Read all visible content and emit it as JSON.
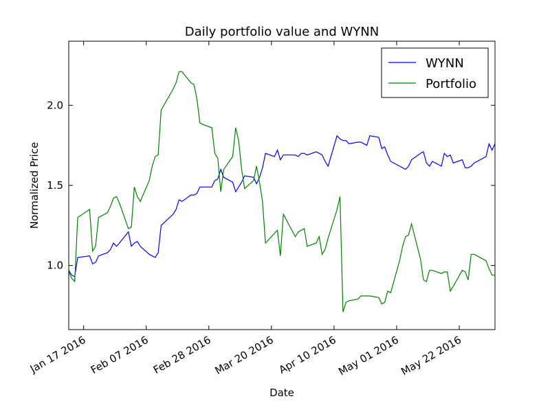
{
  "chart_data": {
    "type": "line",
    "title": "Daily portfolio value and WYNN",
    "xlabel": "Date",
    "ylabel": "Normalized Price",
    "x": [
      "2016-01-12",
      "2016-01-13",
      "2016-01-14",
      "2016-01-15",
      "2016-01-19",
      "2016-01-20",
      "2016-01-21",
      "2016-01-22",
      "2016-01-25",
      "2016-01-26",
      "2016-01-27",
      "2016-01-28",
      "2016-01-29",
      "2016-02-01",
      "2016-02-02",
      "2016-02-03",
      "2016-02-04",
      "2016-02-05",
      "2016-02-08",
      "2016-02-09",
      "2016-02-10",
      "2016-02-11",
      "2016-02-12",
      "2016-02-16",
      "2016-02-17",
      "2016-02-18",
      "2016-02-19",
      "2016-02-22",
      "2016-02-23",
      "2016-02-24",
      "2016-02-25",
      "2016-02-26",
      "2016-02-29",
      "2016-03-01",
      "2016-03-02",
      "2016-03-03",
      "2016-03-04",
      "2016-03-07",
      "2016-03-08",
      "2016-03-09",
      "2016-03-10",
      "2016-03-11",
      "2016-03-14",
      "2016-03-15",
      "2016-03-16",
      "2016-03-17",
      "2016-03-18",
      "2016-03-21",
      "2016-03-22",
      "2016-03-23",
      "2016-03-24",
      "2016-03-28",
      "2016-03-29",
      "2016-03-30",
      "2016-03-31",
      "2016-04-01",
      "2016-04-04",
      "2016-04-05",
      "2016-04-06",
      "2016-04-07",
      "2016-04-08",
      "2016-04-11",
      "2016-04-12",
      "2016-04-13",
      "2016-04-14",
      "2016-04-15",
      "2016-04-18",
      "2016-04-19",
      "2016-04-20",
      "2016-04-21",
      "2016-04-22",
      "2016-04-25",
      "2016-04-26",
      "2016-04-27",
      "2016-04-28",
      "2016-04-29",
      "2016-05-02",
      "2016-05-03",
      "2016-05-04",
      "2016-05-05",
      "2016-05-06",
      "2016-05-09",
      "2016-05-10",
      "2016-05-11",
      "2016-05-12",
      "2016-05-13",
      "2016-05-16",
      "2016-05-17",
      "2016-05-18",
      "2016-05-19",
      "2016-05-20",
      "2016-05-23",
      "2016-05-24",
      "2016-05-25",
      "2016-05-26",
      "2016-05-27",
      "2016-05-31",
      "2016-06-01",
      "2016-06-02",
      "2016-06-03"
    ],
    "series": [
      {
        "name": "WYNN",
        "color": "#0000ff",
        "values": [
          0.97,
          0.94,
          0.93,
          1.05,
          1.06,
          1.01,
          1.02,
          1.06,
          1.08,
          1.1,
          1.14,
          1.12,
          1.14,
          1.21,
          1.12,
          1.14,
          1.15,
          1.12,
          1.07,
          1.06,
          1.05,
          1.08,
          1.25,
          1.32,
          1.35,
          1.41,
          1.4,
          1.44,
          1.44,
          1.45,
          1.49,
          1.49,
          1.49,
          1.53,
          1.54,
          1.6,
          1.55,
          1.52,
          1.46,
          1.49,
          1.52,
          1.56,
          1.55,
          1.51,
          1.55,
          1.61,
          1.7,
          1.68,
          1.72,
          1.66,
          1.69,
          1.69,
          1.68,
          1.7,
          1.7,
          1.69,
          1.71,
          1.7,
          1.69,
          1.65,
          1.62,
          1.81,
          1.79,
          1.78,
          1.78,
          1.76,
          1.77,
          1.77,
          1.76,
          1.75,
          1.81,
          1.8,
          1.73,
          1.74,
          1.69,
          1.65,
          1.62,
          1.61,
          1.6,
          1.62,
          1.66,
          1.7,
          1.71,
          1.64,
          1.62,
          1.65,
          1.62,
          1.7,
          1.68,
          1.69,
          1.64,
          1.66,
          1.61,
          1.61,
          1.62,
          1.64,
          1.68,
          1.76,
          1.72,
          1.76
        ]
      },
      {
        "name": "Portfolio",
        "color": "#008000",
        "values": [
          0.96,
          0.92,
          0.9,
          1.3,
          1.35,
          1.09,
          1.12,
          1.3,
          1.33,
          1.37,
          1.42,
          1.43,
          1.39,
          1.23,
          1.24,
          1.49,
          1.43,
          1.4,
          1.53,
          1.62,
          1.68,
          1.69,
          1.97,
          2.1,
          2.14,
          2.21,
          2.21,
          2.14,
          2.13,
          2.04,
          1.89,
          1.88,
          1.86,
          1.7,
          1.67,
          1.46,
          1.6,
          1.68,
          1.86,
          1.78,
          1.6,
          1.48,
          1.53,
          1.62,
          1.52,
          1.4,
          1.14,
          1.2,
          1.22,
          1.06,
          1.32,
          1.18,
          1.21,
          1.22,
          1.23,
          1.12,
          1.14,
          1.18,
          1.07,
          1.1,
          1.17,
          1.35,
          1.43,
          0.71,
          0.77,
          0.78,
          0.79,
          0.81,
          0.81,
          0.81,
          0.81,
          0.8,
          0.76,
          0.77,
          0.84,
          0.83,
          1.03,
          1.12,
          1.18,
          1.19,
          1.26,
          1.04,
          0.91,
          0.9,
          0.97,
          0.97,
          0.95,
          0.96,
          0.96,
          0.84,
          0.87,
          0.97,
          0.96,
          0.91,
          1.07,
          1.07,
          1.03,
          0.98,
          0.94,
          0.94
        ]
      }
    ],
    "xlim": [
      "2016-01-12",
      "2016-06-03"
    ],
    "xticks": [
      {
        "value": "2016-01-17",
        "label": "Jan 17 2016"
      },
      {
        "value": "2016-02-07",
        "label": "Feb 07 2016"
      },
      {
        "value": "2016-02-28",
        "label": "Feb 28 2016"
      },
      {
        "value": "2016-03-20",
        "label": "Mar 20 2016"
      },
      {
        "value": "2016-04-10",
        "label": "Apr 10 2016"
      },
      {
        "value": "2016-05-01",
        "label": "May 01 2016"
      },
      {
        "value": "2016-05-22",
        "label": "May 22 2016"
      }
    ],
    "ylim": [
      0.6,
      2.4
    ],
    "yticks": [
      {
        "value": 1,
        "label": "1.0"
      },
      {
        "value": 1.5,
        "label": "1.5"
      },
      {
        "value": 2,
        "label": "2.0"
      }
    ],
    "grid": false,
    "legend": "upper right"
  }
}
